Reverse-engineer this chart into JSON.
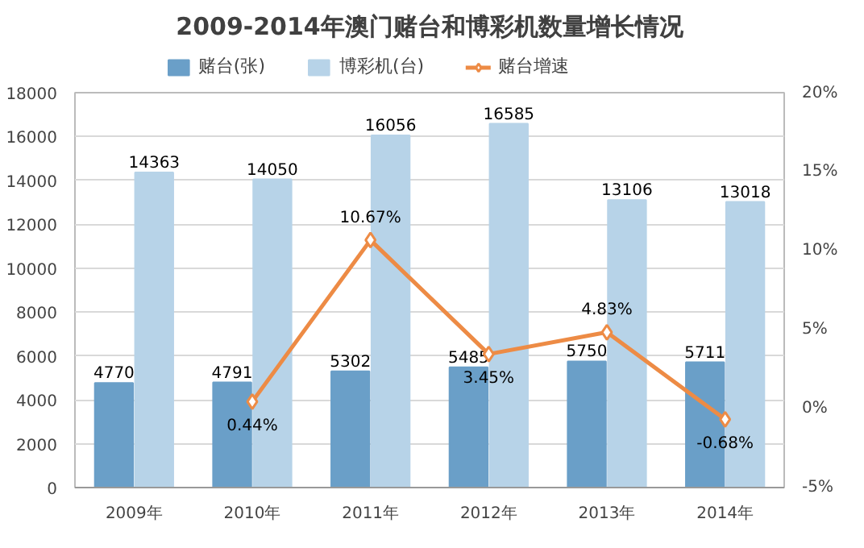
{
  "chart_data": {
    "type": "bar",
    "title": "2009-2014年澳门赌台和博彩机数量增长情况",
    "categories": [
      "2009年",
      "2010年",
      "2011年",
      "2012年",
      "2013年",
      "2014年"
    ],
    "series": [
      {
        "name": "赌台(张)",
        "color": "#6a9fc8",
        "values": [
          4770,
          4791,
          5302,
          5485,
          5750,
          5711
        ]
      },
      {
        "name": "博彩机(台)",
        "color": "#b7d3e8",
        "values": [
          14363,
          14050,
          16056,
          16585,
          13106,
          13018
        ]
      },
      {
        "name": "赌台增速",
        "type": "line",
        "axis": "y2",
        "color": "#ed8b45",
        "marker": "diamond",
        "values": [
          null,
          0.44,
          10.67,
          3.45,
          4.83,
          -0.68
        ],
        "value_labels": [
          null,
          "0.44%",
          "10.67%",
          "3.45%",
          "4.83%",
          "-0.68%"
        ]
      }
    ],
    "data_labels": true,
    "ylim": [
      0,
      18000
    ],
    "yticks": [
      0,
      2000,
      4000,
      6000,
      8000,
      10000,
      12000,
      14000,
      16000,
      18000
    ],
    "y2lim": [
      -5,
      20
    ],
    "y2ticks": [
      {
        "value": -5,
        "label": "-5%"
      },
      {
        "value": 0,
        "label": "0%"
      },
      {
        "value": 5,
        "label": "5%"
      },
      {
        "value": 10,
        "label": "10%"
      },
      {
        "value": 15,
        "label": "15%"
      },
      {
        "value": 20,
        "label": "20%"
      }
    ],
    "grid": "y",
    "legend": "top"
  }
}
